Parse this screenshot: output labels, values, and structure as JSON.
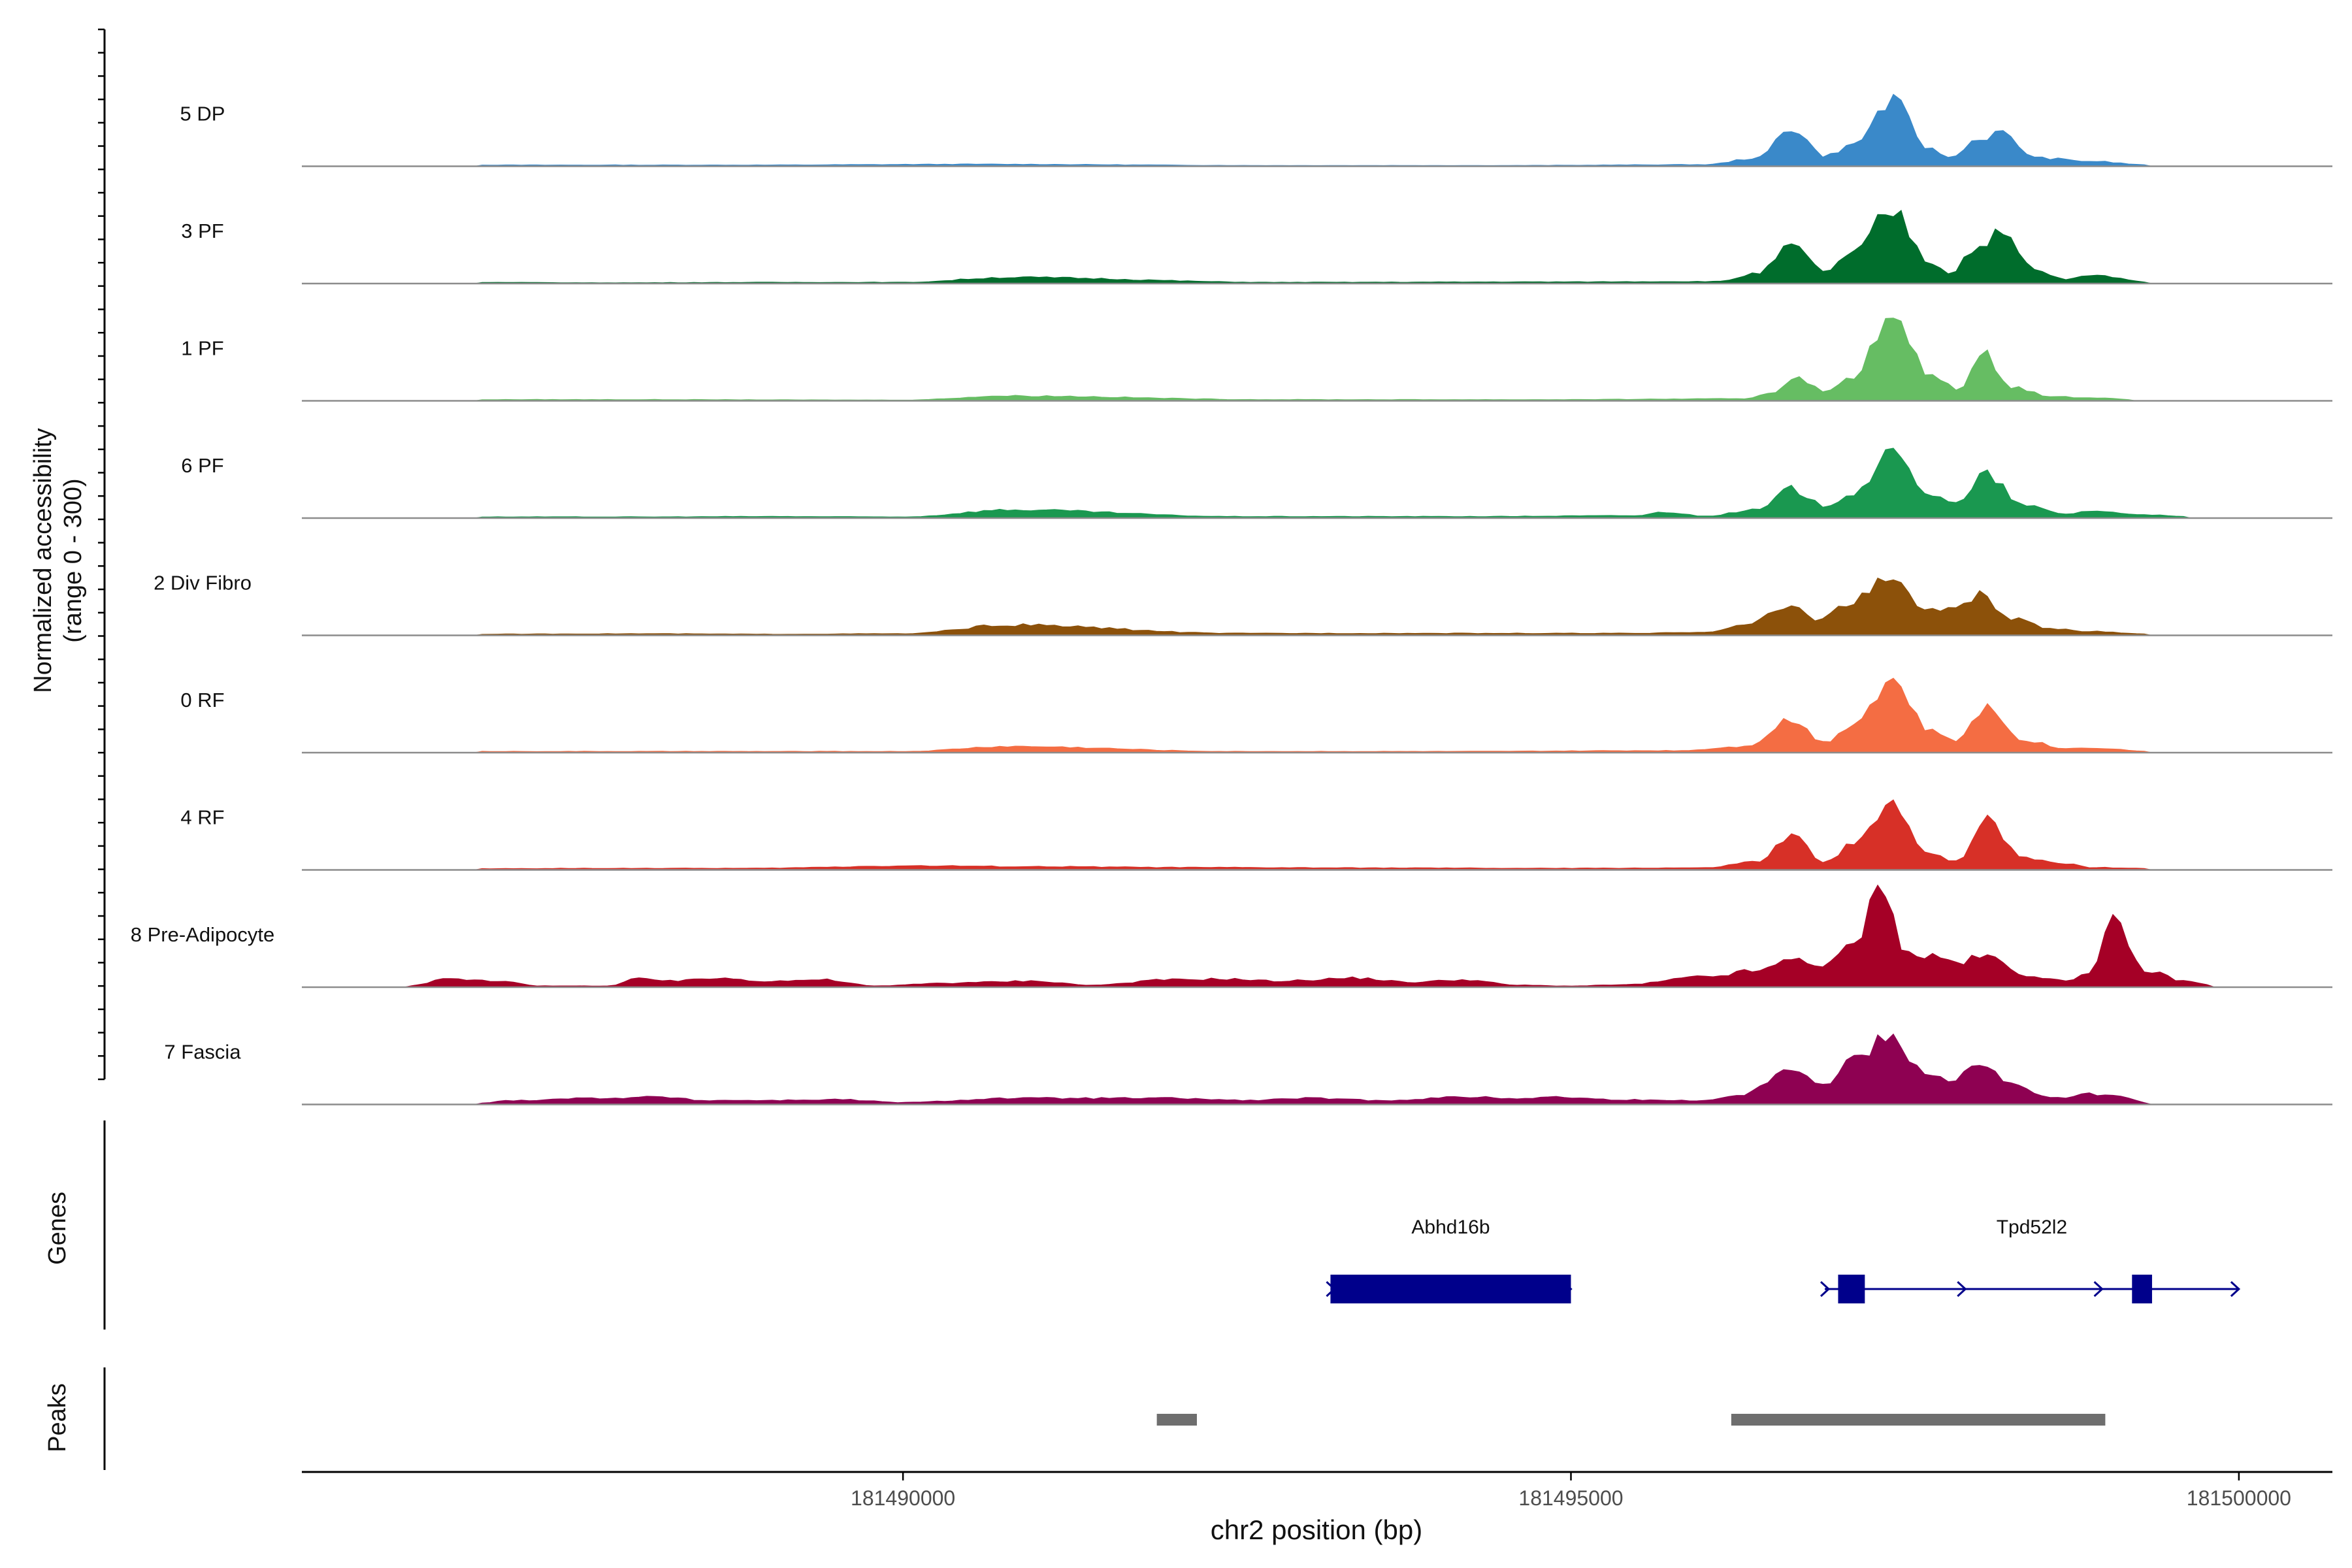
{
  "chart_data": {
    "type": "area",
    "title": "",
    "ylabel": "Normalized accessibility",
    "ylabel_range": "(range 0 - 300)",
    "ylim": [
      0,
      300
    ],
    "xlabel": "chr2 position (bp)",
    "xlim": [
      181485500,
      181500700
    ],
    "x_ticks": [
      {
        "value": 181490000,
        "label": "181490000"
      },
      {
        "value": 181495000,
        "label": "181495000"
      },
      {
        "value": 181500000,
        "label": "181500000"
      }
    ],
    "tracks": [
      {
        "name": "5 DP",
        "color": "#3A89C9",
        "profile": [
          [
            181486800,
            3
          ],
          [
            181487700,
            3
          ],
          [
            181488800,
            3
          ],
          [
            181490600,
            5
          ],
          [
            181492800,
            2
          ],
          [
            181494500,
            2
          ],
          [
            181496000,
            4
          ],
          [
            181496400,
            20
          ],
          [
            181496650,
            95
          ],
          [
            181496900,
            25
          ],
          [
            181497100,
            50
          ],
          [
            181497400,
            155
          ],
          [
            181497700,
            40
          ],
          [
            181497850,
            20
          ],
          [
            181498000,
            60
          ],
          [
            181498200,
            80
          ],
          [
            181498500,
            20
          ],
          [
            181498900,
            12
          ],
          [
            181499300,
            4
          ]
        ]
      },
      {
        "name": "3 PF",
        "color": "#006D2C",
        "profile": [
          [
            181486800,
            3
          ],
          [
            181487700,
            2
          ],
          [
            181489100,
            3
          ],
          [
            181490000,
            3
          ],
          [
            181490800,
            15
          ],
          [
            181492800,
            3
          ],
          [
            181494800,
            4
          ],
          [
            181496100,
            5
          ],
          [
            181496400,
            25
          ],
          [
            181496650,
            90
          ],
          [
            181496900,
            30
          ],
          [
            181497100,
            70
          ],
          [
            181497400,
            175
          ],
          [
            181497700,
            50
          ],
          [
            181497850,
            25
          ],
          [
            181498000,
            80
          ],
          [
            181498200,
            120
          ],
          [
            181498500,
            30
          ],
          [
            181498700,
            10
          ],
          [
            181498900,
            20
          ],
          [
            181499000,
            18
          ],
          [
            181499300,
            4
          ]
        ]
      },
      {
        "name": "1 PF",
        "color": "#66BD63",
        "profile": [
          [
            181486800,
            3
          ],
          [
            181488000,
            3
          ],
          [
            181490000,
            2
          ],
          [
            181490800,
            12
          ],
          [
            181492800,
            3
          ],
          [
            181494800,
            3
          ],
          [
            181496300,
            5
          ],
          [
            181496500,
            20
          ],
          [
            181496700,
            60
          ],
          [
            181496900,
            20
          ],
          [
            181497100,
            60
          ],
          [
            181497400,
            195
          ],
          [
            181497700,
            60
          ],
          [
            181497900,
            30
          ],
          [
            181498100,
            110
          ],
          [
            181498300,
            35
          ],
          [
            181498600,
            10
          ],
          [
            181498900,
            8
          ],
          [
            181499200,
            3
          ]
        ]
      },
      {
        "name": "6 PF",
        "color": "#1A9850",
        "profile": [
          [
            181486800,
            3
          ],
          [
            181488000,
            3
          ],
          [
            181489000,
            4
          ],
          [
            181490000,
            3
          ],
          [
            181490800,
            20
          ],
          [
            181492500,
            4
          ],
          [
            181494200,
            4
          ],
          [
            181495500,
            6
          ],
          [
            181495700,
            15
          ],
          [
            181496000,
            5
          ],
          [
            181496400,
            20
          ],
          [
            181496650,
            70
          ],
          [
            181496900,
            30
          ],
          [
            181497100,
            60
          ],
          [
            181497400,
            150
          ],
          [
            181497700,
            60
          ],
          [
            181497900,
            35
          ],
          [
            181498100,
            105
          ],
          [
            181498400,
            30
          ],
          [
            181498700,
            10
          ],
          [
            181498900,
            18
          ],
          [
            181499200,
            10
          ],
          [
            181499600,
            4
          ]
        ]
      },
      {
        "name": "2 Div Fibro",
        "color": "#8C510A",
        "profile": [
          [
            181486800,
            3
          ],
          [
            181488000,
            4
          ],
          [
            181489000,
            3
          ],
          [
            181490000,
            4
          ],
          [
            181490800,
            25
          ],
          [
            181492500,
            5
          ],
          [
            181494000,
            5
          ],
          [
            181495500,
            5
          ],
          [
            181496000,
            8
          ],
          [
            181496300,
            25
          ],
          [
            181496650,
            70
          ],
          [
            181496850,
            40
          ],
          [
            181497100,
            80
          ],
          [
            181497400,
            145
          ],
          [
            181497600,
            70
          ],
          [
            181497800,
            60
          ],
          [
            181498050,
            95
          ],
          [
            181498300,
            40
          ],
          [
            181498600,
            15
          ],
          [
            181498900,
            10
          ],
          [
            181499300,
            4
          ]
        ]
      },
      {
        "name": "0 RF",
        "color": "#F46D43",
        "profile": [
          [
            181486800,
            3
          ],
          [
            181488000,
            3
          ],
          [
            181489000,
            3
          ],
          [
            181490000,
            3
          ],
          [
            181490800,
            15
          ],
          [
            181492500,
            3
          ],
          [
            181494000,
            3
          ],
          [
            181495800,
            5
          ],
          [
            181496300,
            15
          ],
          [
            181496650,
            80
          ],
          [
            181496900,
            25
          ],
          [
            181497100,
            70
          ],
          [
            181497400,
            175
          ],
          [
            181497700,
            50
          ],
          [
            181497900,
            30
          ],
          [
            181498100,
            110
          ],
          [
            181498400,
            30
          ],
          [
            181498700,
            10
          ],
          [
            181498900,
            12
          ],
          [
            181499300,
            4
          ]
        ]
      },
      {
        "name": "4 RF",
        "color": "#D73027",
        "profile": [
          [
            181486800,
            3
          ],
          [
            181487800,
            4
          ],
          [
            181488800,
            4
          ],
          [
            181490100,
            10
          ],
          [
            181491000,
            8
          ],
          [
            181492200,
            6
          ],
          [
            181493500,
            5
          ],
          [
            181494800,
            4
          ],
          [
            181496000,
            5
          ],
          [
            181496400,
            20
          ],
          [
            181496650,
            80
          ],
          [
            181496900,
            20
          ],
          [
            181497100,
            60
          ],
          [
            181497400,
            150
          ],
          [
            181497700,
            40
          ],
          [
            181497900,
            20
          ],
          [
            181498100,
            125
          ],
          [
            181498400,
            30
          ],
          [
            181498650,
            18
          ],
          [
            181498900,
            6
          ],
          [
            181499300,
            4
          ]
        ]
      },
      {
        "name": "8 Pre-Adipocyte",
        "color": "#A50026",
        "profile": [
          [
            181486300,
            3
          ],
          [
            181486600,
            20
          ],
          [
            181487000,
            15
          ],
          [
            181487300,
            3
          ],
          [
            181487800,
            3
          ],
          [
            181488000,
            20
          ],
          [
            181488300,
            15
          ],
          [
            181488600,
            22
          ],
          [
            181489000,
            15
          ],
          [
            181489400,
            18
          ],
          [
            181489800,
            3
          ],
          [
            181490300,
            10
          ],
          [
            181491000,
            15
          ],
          [
            181491400,
            5
          ],
          [
            181492000,
            18
          ],
          [
            181492400,
            20
          ],
          [
            181492800,
            15
          ],
          [
            181493400,
            22
          ],
          [
            181493800,
            12
          ],
          [
            181494200,
            18
          ],
          [
            181494600,
            5
          ],
          [
            181495000,
            3
          ],
          [
            181495400,
            6
          ],
          [
            181496000,
            25
          ],
          [
            181496400,
            40
          ],
          [
            181496700,
            70
          ],
          [
            181496900,
            50
          ],
          [
            181497100,
            100
          ],
          [
            181497350,
            255
          ],
          [
            181497500,
            80
          ],
          [
            181497700,
            75
          ],
          [
            181497900,
            60
          ],
          [
            181498100,
            75
          ],
          [
            181498400,
            30
          ],
          [
            181498700,
            15
          ],
          [
            181498900,
            40
          ],
          [
            181499050,
            155
          ],
          [
            181499300,
            40
          ],
          [
            181499600,
            15
          ],
          [
            181499800,
            5
          ]
        ]
      },
      {
        "name": "7 Fascia",
        "color": "#8E0152",
        "profile": [
          [
            181486800,
            3
          ],
          [
            181487100,
            10
          ],
          [
            181487600,
            15
          ],
          [
            181488200,
            18
          ],
          [
            181488500,
            10
          ],
          [
            181489000,
            10
          ],
          [
            181489500,
            12
          ],
          [
            181490000,
            5
          ],
          [
            181490800,
            15
          ],
          [
            181491400,
            15
          ],
          [
            181492000,
            15
          ],
          [
            181492600,
            10
          ],
          [
            181493000,
            15
          ],
          [
            181493600,
            10
          ],
          [
            181494200,
            18
          ],
          [
            181494600,
            15
          ],
          [
            181494900,
            18
          ],
          [
            181495300,
            12
          ],
          [
            181495700,
            10
          ],
          [
            181496000,
            10
          ],
          [
            181496300,
            25
          ],
          [
            181496650,
            95
          ],
          [
            181496900,
            45
          ],
          [
            181497100,
            110
          ],
          [
            181497400,
            165
          ],
          [
            181497650,
            80
          ],
          [
            181497850,
            60
          ],
          [
            181498050,
            95
          ],
          [
            181498300,
            50
          ],
          [
            181498600,
            15
          ],
          [
            181498900,
            25
          ],
          [
            181499100,
            20
          ],
          [
            181499300,
            5
          ]
        ]
      }
    ],
    "genes": [
      {
        "name": "Abhd16b",
        "start": 181493200,
        "end": 181495000,
        "strand": "+",
        "exons": [
          [
            181493200,
            181495000
          ]
        ]
      },
      {
        "name": "Tpd52l2",
        "start": 181496900,
        "end": 181500000,
        "strand": "+",
        "exons": [
          [
            181497000,
            181497200
          ],
          [
            181499200,
            181499350
          ]
        ]
      }
    ],
    "peaks": [
      [
        181491900,
        181492200
      ],
      [
        181496200,
        181499000
      ]
    ],
    "panel_labels": {
      "genes": "Genes",
      "peaks": "Peaks"
    },
    "colors": {
      "gene": "#00008B",
      "peak": "#6E6E6E",
      "baseline": "#8C8C8C",
      "axis": "#000000"
    }
  }
}
